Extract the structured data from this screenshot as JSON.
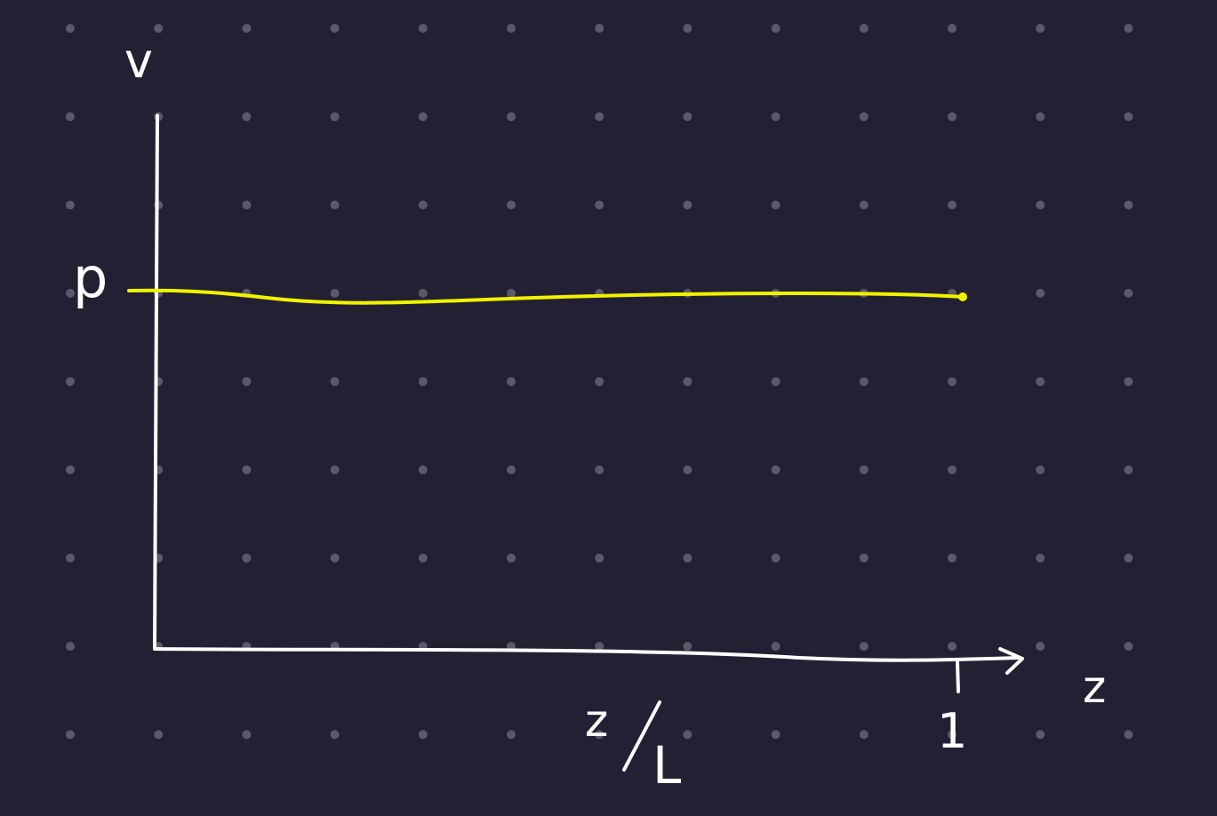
{
  "colors": {
    "background": "#232034",
    "grid_dot": "#5a5869",
    "ink": "#ffffff",
    "curve": "#f2f200"
  },
  "labels": {
    "y_axis": "v",
    "level": "p",
    "x_axis": "z",
    "x_tick": "1",
    "x_fraction_numerator": "z",
    "x_fraction_denominator": "L"
  },
  "curve": {
    "type": "constant",
    "value_label": "p",
    "x_range": [
      0,
      1
    ]
  }
}
